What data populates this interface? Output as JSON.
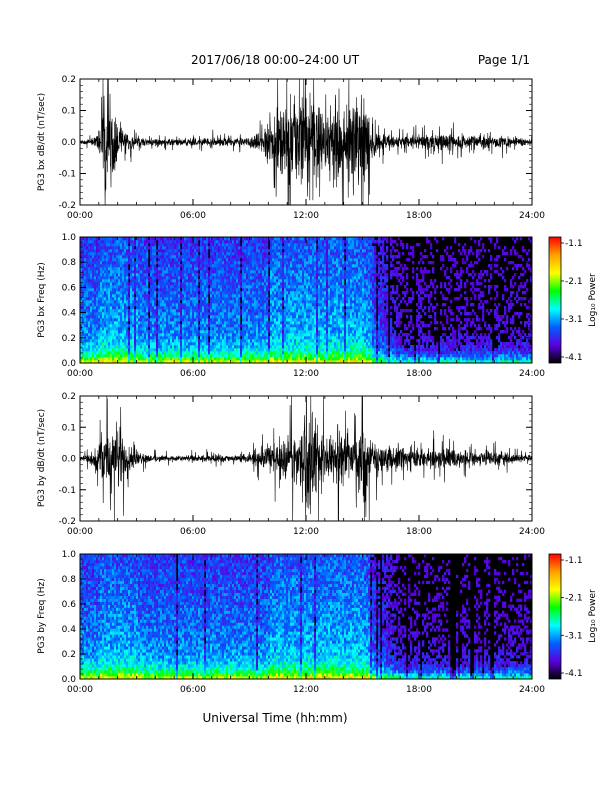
{
  "header": {
    "title": "2017/06/18   00:00–24:00 UT",
    "page": "Page 1/1"
  },
  "footer": {
    "xlabel": "Universal Time (hh:mm)"
  },
  "colorbar": {
    "label": "Log₁₀ Power",
    "ticks": [
      "-1.1",
      "-2.1",
      "-3.1",
      "-4.1"
    ],
    "stops": [
      "#ff0000",
      "#ffa000",
      "#ffff00",
      "#00ff00",
      "#00ffff",
      "#0060ff",
      "#5a00e0",
      "#000000"
    ]
  },
  "chart_data": [
    {
      "type": "line",
      "ylabel": "PG3 bx dB/dt (nT/sec)",
      "xlim": [
        0,
        24
      ],
      "ylim": [
        -0.2,
        0.2
      ],
      "xticks": [
        "00:00",
        "06:00",
        "12:00",
        "18:00",
        "24:00"
      ],
      "yticks": [
        "0.2",
        "0.1",
        "0.0",
        "-0.1",
        "-0.2"
      ],
      "envelope": {
        "x_hours": [
          0,
          0.5,
          1,
          1.3,
          1.6,
          2,
          2.5,
          3,
          4,
          5,
          6,
          7,
          8,
          9,
          9.8,
          10.4,
          11,
          11.5,
          12,
          12.5,
          13,
          13.5,
          14,
          14.5,
          15,
          15.5,
          16,
          17,
          18,
          19,
          20,
          21,
          22,
          23,
          24
        ],
        "amplitude": [
          0.01,
          0.012,
          0.05,
          0.22,
          0.2,
          0.1,
          0.04,
          0.02,
          0.015,
          0.015,
          0.018,
          0.02,
          0.018,
          0.02,
          0.05,
          0.2,
          0.15,
          0.22,
          0.22,
          0.2,
          0.12,
          0.2,
          0.15,
          0.2,
          0.22,
          0.08,
          0.04,
          0.03,
          0.03,
          0.04,
          0.03,
          0.025,
          0.03,
          0.02,
          0.015
        ]
      }
    },
    {
      "type": "heatmap",
      "ylabel": "PG3 bx Freq (Hz)",
      "xlim": [
        0,
        24
      ],
      "ylim": [
        0,
        1.0
      ],
      "xticks": [
        "00:00",
        "06:00",
        "12:00",
        "18:00",
        "24:00"
      ],
      "yticks": [
        "1.0",
        "0.8",
        "0.6",
        "0.4",
        "0.2",
        "0.0"
      ],
      "zlim": [
        -4.1,
        -1.1
      ],
      "zlabel": "Log₁₀ Power"
    },
    {
      "type": "line",
      "ylabel": "PG3 by dB/dt (nT/sec)",
      "xlim": [
        0,
        24
      ],
      "ylim": [
        -0.2,
        0.2
      ],
      "xticks": [
        "00:00",
        "06:00",
        "12:00",
        "18:00",
        "24:00"
      ],
      "yticks": [
        "0.2",
        "0.1",
        "0.0",
        "-0.1",
        "-0.2"
      ],
      "envelope": {
        "x_hours": [
          0,
          0.5,
          1,
          1.5,
          2,
          2.5,
          3,
          4,
          5,
          6,
          7,
          8,
          9,
          9.8,
          10.4,
          11,
          11.5,
          12,
          12.5,
          13,
          13.5,
          14,
          14.5,
          15,
          15.5,
          16,
          17,
          18,
          19,
          20,
          21,
          22,
          23,
          24
        ],
        "amplitude": [
          0.01,
          0.02,
          0.06,
          0.2,
          0.15,
          0.1,
          0.03,
          0.015,
          0.012,
          0.015,
          0.015,
          0.015,
          0.018,
          0.05,
          0.1,
          0.12,
          0.1,
          0.2,
          0.2,
          0.1,
          0.1,
          0.14,
          0.1,
          0.2,
          0.08,
          0.06,
          0.06,
          0.04,
          0.05,
          0.04,
          0.03,
          0.04,
          0.02,
          0.015
        ]
      }
    },
    {
      "type": "heatmap",
      "ylabel": "PG3 by Freq (Hz)",
      "xlim": [
        0,
        24
      ],
      "ylim": [
        0,
        1.0
      ],
      "xticks": [
        "00:00",
        "06:00",
        "12:00",
        "18:00",
        "24:00"
      ],
      "yticks": [
        "1.0",
        "0.8",
        "0.6",
        "0.4",
        "0.2",
        "0.0"
      ],
      "zlim": [
        -4.1,
        -1.1
      ],
      "zlabel": "Log₁₀ Power"
    }
  ]
}
